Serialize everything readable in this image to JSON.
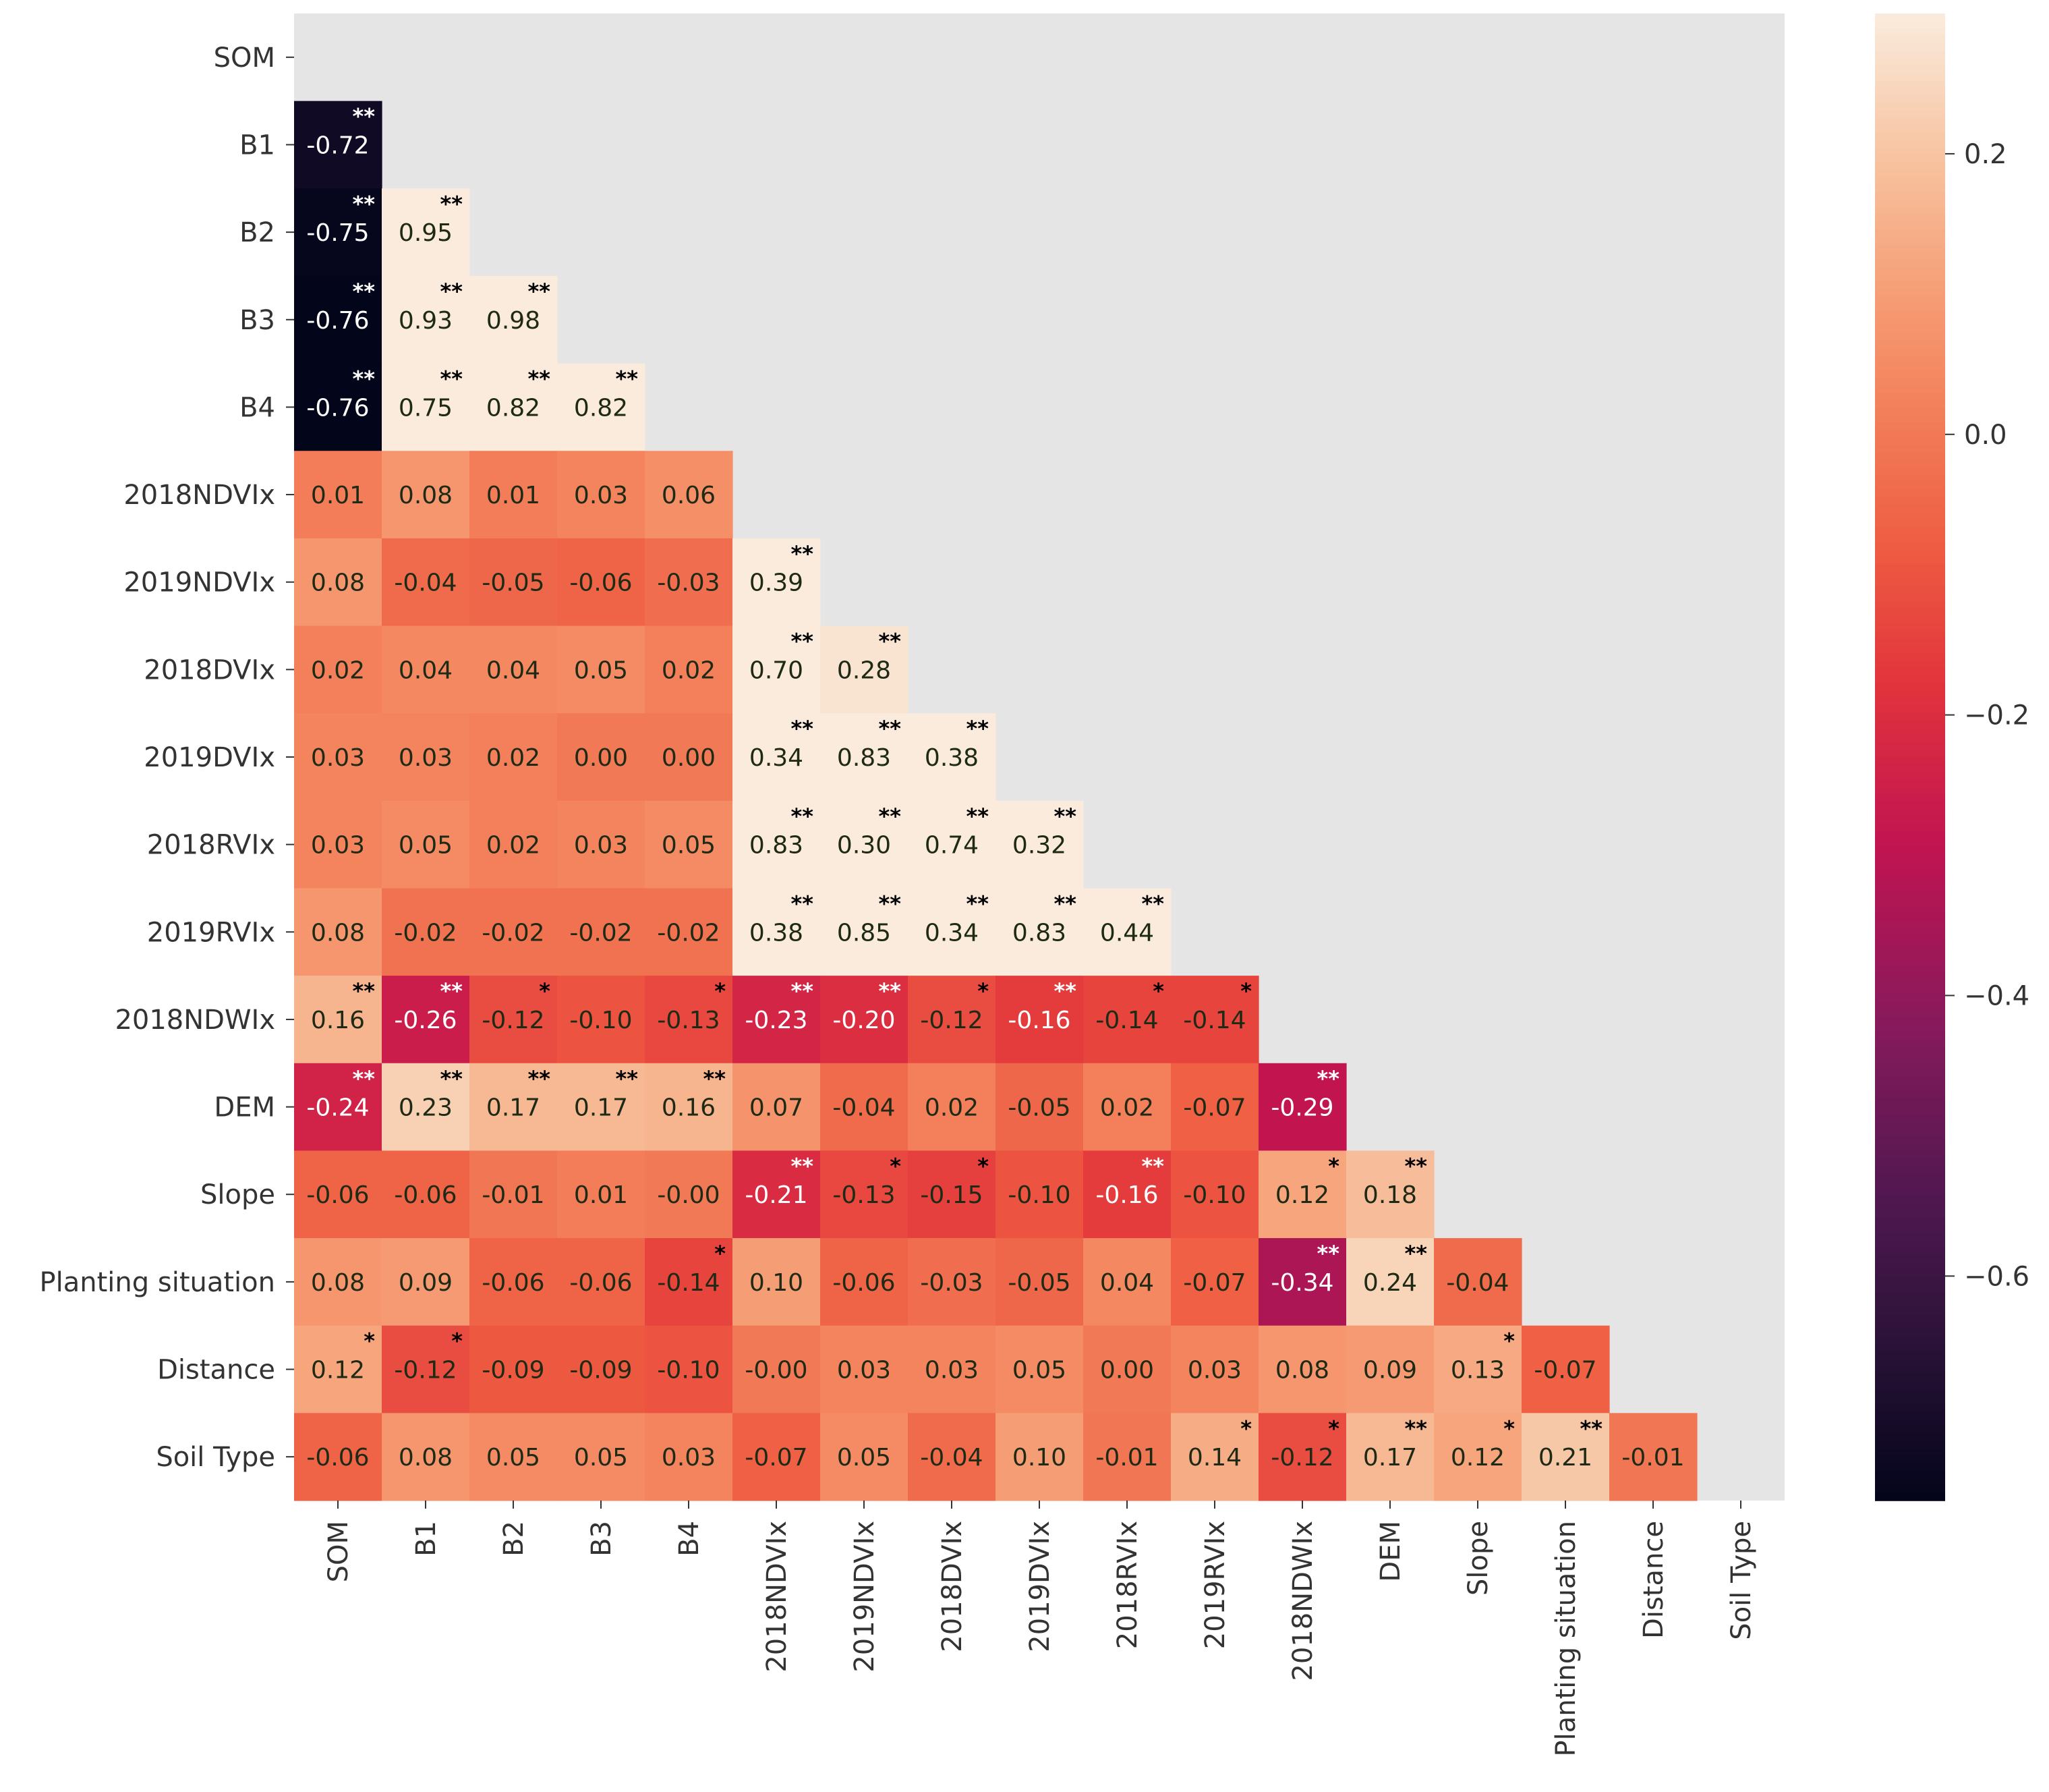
{
  "chart_data": {
    "type": "heatmap",
    "title": "",
    "xlabel": "",
    "ylabel": "",
    "labels": [
      "SOM",
      "B1",
      "B2",
      "B3",
      "B4",
      "2018NDVIx",
      "2019NDVIx",
      "2018DVIx",
      "2019DVIx",
      "2018RVIx",
      "2019RVIx",
      "2018NDWIx",
      "DEM",
      "Slope",
      "Planting situation",
      "Distance",
      "Soil Type"
    ],
    "mask": "upper-triangle-including-diagonal",
    "values": [
      [],
      [
        -0.72
      ],
      [
        -0.75,
        0.95
      ],
      [
        -0.76,
        0.93,
        0.98
      ],
      [
        -0.76,
        0.75,
        0.82,
        0.82
      ],
      [
        0.01,
        0.08,
        0.01,
        0.03,
        0.06
      ],
      [
        0.08,
        -0.04,
        -0.05,
        -0.06,
        -0.03,
        0.39
      ],
      [
        0.02,
        0.04,
        0.04,
        0.05,
        0.02,
        0.7,
        0.28
      ],
      [
        0.03,
        0.03,
        0.02,
        0.0,
        0.0,
        0.34,
        0.83,
        0.38
      ],
      [
        0.03,
        0.05,
        0.02,
        0.03,
        0.05,
        0.83,
        0.3,
        0.74,
        0.32
      ],
      [
        0.08,
        -0.02,
        -0.02,
        -0.02,
        -0.02,
        0.38,
        0.85,
        0.34,
        0.83,
        0.44
      ],
      [
        0.16,
        -0.26,
        -0.12,
        -0.1,
        -0.13,
        -0.23,
        -0.2,
        -0.12,
        -0.16,
        -0.14,
        -0.14
      ],
      [
        -0.24,
        0.23,
        0.17,
        0.17,
        0.16,
        0.07,
        -0.04,
        0.02,
        -0.05,
        0.02,
        -0.07,
        -0.29
      ],
      [
        -0.06,
        -0.06,
        -0.01,
        0.01,
        -0.0,
        -0.21,
        -0.13,
        -0.15,
        -0.1,
        -0.16,
        -0.1,
        0.12,
        0.18
      ],
      [
        0.08,
        0.09,
        -0.06,
        -0.06,
        -0.14,
        0.1,
        -0.06,
        -0.03,
        -0.05,
        0.04,
        -0.07,
        -0.34,
        0.24,
        -0.04
      ],
      [
        0.12,
        -0.12,
        -0.09,
        -0.09,
        -0.1,
        -0.0,
        0.03,
        0.03,
        0.05,
        0.0,
        0.03,
        0.08,
        0.09,
        0.13,
        -0.07
      ],
      [
        -0.06,
        0.08,
        0.05,
        0.05,
        0.03,
        -0.07,
        0.05,
        -0.04,
        0.1,
        -0.01,
        0.14,
        -0.12,
        0.17,
        0.12,
        0.21,
        -0.01
      ]
    ],
    "value_labels": [
      [],
      [
        "-0.72"
      ],
      [
        "-0.75",
        "0.95"
      ],
      [
        "-0.76",
        "0.93",
        "0.98"
      ],
      [
        "-0.76",
        "0.75",
        "0.82",
        "0.82"
      ],
      [
        "0.01",
        "0.08",
        "0.01",
        "0.03",
        "0.06"
      ],
      [
        "0.08",
        "-0.04",
        "-0.05",
        "-0.06",
        "-0.03",
        "0.39"
      ],
      [
        "0.02",
        "0.04",
        "0.04",
        "0.05",
        "0.02",
        "0.70",
        "0.28"
      ],
      [
        "0.03",
        "0.03",
        "0.02",
        "0.00",
        "0.00",
        "0.34",
        "0.83",
        "0.38"
      ],
      [
        "0.03",
        "0.05",
        "0.02",
        "0.03",
        "0.05",
        "0.83",
        "0.30",
        "0.74",
        "0.32"
      ],
      [
        "0.08",
        "-0.02",
        "-0.02",
        "-0.02",
        "-0.02",
        "0.38",
        "0.85",
        "0.34",
        "0.83",
        "0.44"
      ],
      [
        "0.16",
        "-0.26",
        "-0.12",
        "-0.10",
        "-0.13",
        "-0.23",
        "-0.20",
        "-0.12",
        "-0.16",
        "-0.14",
        "-0.14"
      ],
      [
        "-0.24",
        "0.23",
        "0.17",
        "0.17",
        "0.16",
        "0.07",
        "-0.04",
        "0.02",
        "-0.05",
        "0.02",
        "-0.07",
        "-0.29"
      ],
      [
        "-0.06",
        "-0.06",
        "-0.01",
        "0.01",
        "-0.00",
        "-0.21",
        "-0.13",
        "-0.15",
        "-0.10",
        "-0.16",
        "-0.10",
        "0.12",
        "0.18"
      ],
      [
        "0.08",
        "0.09",
        "-0.06",
        "-0.06",
        "-0.14",
        "0.10",
        "-0.06",
        "-0.03",
        "-0.05",
        "0.04",
        "-0.07",
        "-0.34",
        "0.24",
        "-0.04"
      ],
      [
        "0.12",
        "-0.12",
        "-0.09",
        "-0.09",
        "-0.10",
        "-0.00",
        "0.03",
        "0.03",
        "0.05",
        "0.00",
        "0.03",
        "0.08",
        "0.09",
        "0.13",
        "-0.07"
      ],
      [
        "-0.06",
        "0.08",
        "0.05",
        "0.05",
        "0.03",
        "-0.07",
        "0.05",
        "-0.04",
        "0.10",
        "-0.01",
        "0.14",
        "-0.12",
        "0.17",
        "0.12",
        "0.21",
        "-0.01"
      ]
    ],
    "significance": [
      [],
      [
        "**"
      ],
      [
        "**",
        "**"
      ],
      [
        "**",
        "**",
        "**"
      ],
      [
        "**",
        "**",
        "**",
        "**"
      ],
      [
        "",
        "",
        "",
        "",
        ""
      ],
      [
        "",
        "",
        "",
        "",
        "",
        "**"
      ],
      [
        "",
        "",
        "",
        "",
        "",
        "**",
        "**"
      ],
      [
        "",
        "",
        "",
        "",
        "",
        "**",
        "**",
        "**"
      ],
      [
        "",
        "",
        "",
        "",
        "",
        "**",
        "**",
        "**",
        "**"
      ],
      [
        "",
        "",
        "",
        "",
        "",
        "**",
        "**",
        "**",
        "**",
        "**"
      ],
      [
        "**",
        "**",
        "*",
        "",
        "*",
        "**",
        "**",
        "*",
        "**",
        "*",
        "*"
      ],
      [
        "**",
        "**",
        "**",
        "**",
        "**",
        "",
        "",
        "",
        "",
        "",
        "",
        "**"
      ],
      [
        "",
        "",
        "",
        "",
        "",
        "**",
        "*",
        "*",
        "",
        "**",
        "",
        "*",
        "**"
      ],
      [
        "",
        "",
        "",
        "",
        "*",
        "",
        "",
        "",
        "",
        "",
        "",
        "**",
        "**",
        ""
      ],
      [
        "*",
        "*",
        "",
        "",
        "",
        "",
        "",
        "",
        "",
        "",
        "",
        "",
        "",
        "*",
        ""
      ],
      [
        "",
        "",
        "",
        "",
        "",
        "",
        "",
        "",
        "",
        "",
        "*",
        "*",
        "**",
        "*",
        "**",
        ""
      ]
    ],
    "colormap": "rocket",
    "vmin": -0.76,
    "vmax": 0.3,
    "colorbar": {
      "ticks": [
        0.2,
        0.0,
        -0.2,
        -0.4,
        -0.6
      ],
      "tick_labels": [
        "0.2",
        "0.0",
        "−0.2",
        "−0.4",
        "−0.6"
      ]
    },
    "mask_color": "#e5e5e5"
  }
}
